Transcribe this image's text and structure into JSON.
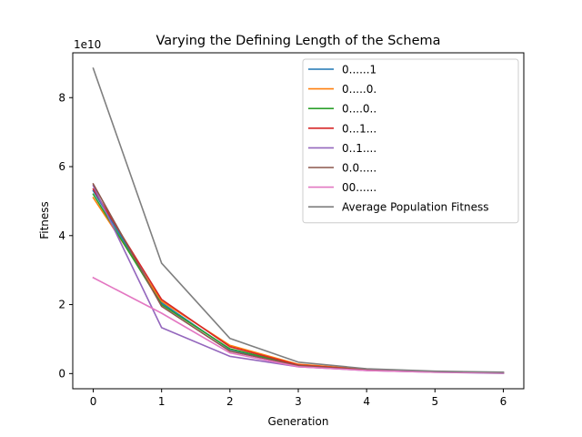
{
  "chart_data": {
    "type": "line",
    "title": "Varying the Defining Length of the Schema",
    "xlabel": "Generation",
    "ylabel": "Fitness",
    "y_offset_label": "1e10",
    "xlim": [
      -0.3,
      6.3
    ],
    "ylim": [
      -0.44,
      9.3
    ],
    "xticks": [
      0,
      1,
      2,
      3,
      4,
      5,
      6
    ],
    "yticks": [
      0,
      2,
      4,
      6,
      8
    ],
    "grid": false,
    "legend_position": "upper right",
    "x": [
      0,
      1,
      2,
      3,
      4,
      5,
      6
    ],
    "series": [
      {
        "name": "0......1",
        "color": "#1f77b4",
        "values": [
          5.3,
          2.05,
          0.7,
          0.22,
          0.1,
          0.05,
          0.02
        ]
      },
      {
        "name": "0.....0.",
        "color": "#ff7f0e",
        "values": [
          5.1,
          2.1,
          0.82,
          0.27,
          0.12,
          0.06,
          0.03
        ]
      },
      {
        "name": "0....0..",
        "color": "#2ca02c",
        "values": [
          5.2,
          2.0,
          0.72,
          0.24,
          0.11,
          0.05,
          0.02
        ]
      },
      {
        "name": "0...1...",
        "color": "#d62728",
        "values": [
          5.35,
          2.15,
          0.78,
          0.25,
          0.11,
          0.05,
          0.02
        ]
      },
      {
        "name": "0..1....",
        "color": "#9467bd",
        "values": [
          5.45,
          1.33,
          0.5,
          0.2,
          0.09,
          0.04,
          0.01
        ]
      },
      {
        "name": "0.0.....",
        "color": "#8c564b",
        "values": [
          5.5,
          1.95,
          0.65,
          0.23,
          0.1,
          0.05,
          0.02
        ]
      },
      {
        "name": "00......",
        "color": "#e377c2",
        "values": [
          2.78,
          1.75,
          0.6,
          0.2,
          0.09,
          0.04,
          0.02
        ]
      },
      {
        "name": "Average Population Fitness",
        "color": "#7f7f7f",
        "values": [
          8.85,
          3.2,
          1.02,
          0.33,
          0.14,
          0.07,
          0.04
        ]
      }
    ]
  }
}
